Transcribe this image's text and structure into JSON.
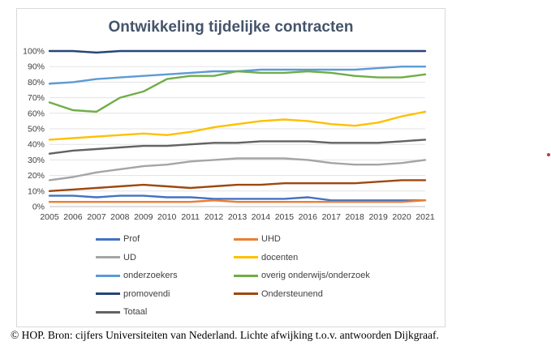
{
  "chart_data": {
    "type": "line",
    "title": "Ontwikkeling tijdelijke contracten",
    "x": [
      "2005",
      "2006",
      "2007",
      "2008",
      "2009",
      "2010",
      "2011",
      "2012",
      "2013",
      "2014",
      "2015",
      "2016",
      "2017",
      "2018",
      "2019",
      "2020",
      "2021"
    ],
    "yticks": [
      "0%",
      "10%",
      "20%",
      "30%",
      "40%",
      "50%",
      "60%",
      "70%",
      "80%",
      "90%",
      "100%"
    ],
    "ylim": [
      0,
      100
    ],
    "grid": true,
    "legend_placement": "bottom",
    "series": [
      {
        "name": "Prof",
        "color": "#4472c4",
        "values": [
          7,
          7,
          6,
          7,
          7,
          6,
          6,
          5,
          5,
          5,
          5,
          6,
          4,
          4,
          4,
          4,
          4
        ]
      },
      {
        "name": "UHD",
        "color": "#ed7d31",
        "values": [
          3,
          3,
          3,
          3,
          3,
          3,
          3,
          4,
          3,
          3,
          3,
          3,
          3,
          3,
          3,
          3,
          4
        ]
      },
      {
        "name": "UD",
        "color": "#a5a5a5",
        "values": [
          17,
          19,
          22,
          24,
          26,
          27,
          29,
          30,
          31,
          31,
          31,
          30,
          28,
          27,
          27,
          28,
          30
        ]
      },
      {
        "name": "docenten",
        "color": "#ffc000",
        "values": [
          43,
          44,
          45,
          46,
          47,
          46,
          48,
          51,
          53,
          55,
          56,
          55,
          53,
          52,
          54,
          58,
          61
        ]
      },
      {
        "name": "onderzoekers",
        "color": "#5b9bd5",
        "values": [
          79,
          80,
          82,
          83,
          84,
          85,
          86,
          87,
          87,
          88,
          88,
          88,
          88,
          88,
          89,
          90,
          90
        ]
      },
      {
        "name": "overig onderwijs/onderzoek",
        "color": "#70ad47",
        "values": [
          67,
          62,
          61,
          70,
          74,
          82,
          84,
          84,
          87,
          86,
          86,
          87,
          86,
          84,
          83,
          83,
          85
        ]
      },
      {
        "name": "promovendi",
        "color": "#264478",
        "values": [
          100,
          100,
          99,
          100,
          100,
          100,
          100,
          100,
          100,
          100,
          100,
          100,
          100,
          100,
          100,
          100,
          100
        ]
      },
      {
        "name": "Ondersteunend",
        "color": "#9e480e",
        "values": [
          10,
          11,
          12,
          13,
          14,
          13,
          12,
          13,
          14,
          14,
          15,
          15,
          15,
          15,
          16,
          17,
          17
        ]
      },
      {
        "name": "Totaal",
        "color": "#636363",
        "values": [
          34,
          36,
          37,
          38,
          39,
          39,
          40,
          41,
          41,
          42,
          42,
          42,
          41,
          41,
          41,
          42,
          43
        ]
      }
    ]
  },
  "source_note": "© HOP. Bron: cijfers Universiteiten van Nederland. Lichte afwijking t.o.v. antwoorden Dijkgraaf.",
  "accent_dot_color": "#c0392b"
}
